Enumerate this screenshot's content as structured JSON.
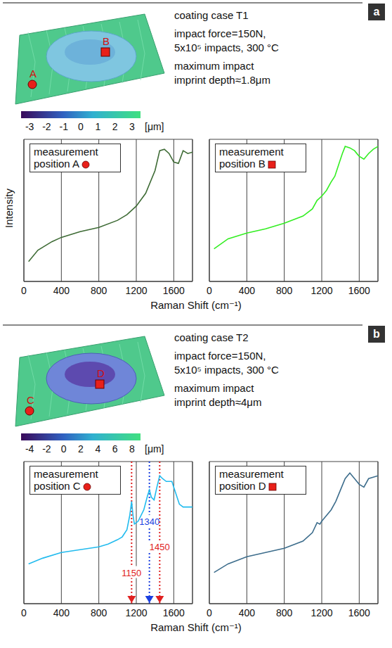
{
  "panels": [
    {
      "letter": "a",
      "texts": [
        "coating case T1",
        "impact force=150N,",
        "5x10⁵ impacts, 300 °C",
        "maximum impact",
        "imprint depth≈1.8μm"
      ],
      "colorbar": {
        "range": [
          -3.5,
          3.5
        ],
        "ticks": [
          -3,
          -2,
          -1,
          0,
          1,
          2,
          3
        ],
        "label": "[μm]"
      },
      "points": [
        {
          "label": "A",
          "shape": "circle"
        },
        {
          "label": "B",
          "shape": "square"
        }
      ],
      "y_label": "Intensity",
      "x_label": "Raman Shift (cm⁻¹)"
    },
    {
      "letter": "b",
      "texts": [
        "coating case T2",
        "impact force=150N,",
        "5x10⁵ impacts, 300 °C",
        "maximum impact",
        "imprint depth≈4μm"
      ],
      "colorbar": {
        "range": [
          -5,
          9
        ],
        "ticks": [
          -4,
          -2,
          0,
          2,
          4,
          6,
          8
        ],
        "label": "[μm]"
      },
      "points": [
        {
          "label": "C",
          "shape": "circle"
        },
        {
          "label": "D",
          "shape": "square"
        }
      ],
      "x_label": "Raman Shift (cm⁻¹)"
    }
  ],
  "chart_data": [
    {
      "type": "line",
      "title": "measurement position A",
      "x": [
        50,
        150,
        300,
        400,
        600,
        800,
        1000,
        1100,
        1200,
        1300,
        1400,
        1450,
        1500,
        1550,
        1600,
        1650,
        1700,
        1750,
        1800
      ],
      "series": [
        {
          "color": "#3e6b35",
          "values": [
            14,
            22,
            28,
            31,
            35,
            38,
            43,
            47,
            53,
            62,
            78,
            92,
            93,
            90,
            84,
            83,
            92,
            90,
            91
          ]
        }
      ],
      "xlim": [
        0,
        1800
      ],
      "ylim": [
        0,
        100
      ],
      "xticks": [
        0,
        400,
        800,
        1200,
        1600
      ],
      "yticks": [
        0,
        20,
        40,
        60,
        80,
        100
      ],
      "grid": true,
      "tick_labels": "x"
    },
    {
      "type": "line",
      "title": "measurement position B",
      "x": [
        50,
        200,
        400,
        600,
        800,
        1000,
        1100,
        1150,
        1200,
        1250,
        1300,
        1340,
        1380,
        1420,
        1450,
        1500,
        1550,
        1600,
        1650,
        1700,
        1750,
        1800
      ],
      "series": [
        {
          "color": "#33ee22",
          "values": [
            23,
            30,
            34,
            37,
            41,
            46,
            51,
            57,
            60,
            64,
            70,
            74,
            82,
            90,
            95,
            94,
            92,
            88,
            86,
            90,
            93,
            95
          ]
        }
      ],
      "xlim": [
        0,
        1800
      ],
      "ylim": [
        0,
        100
      ],
      "xticks": [
        0,
        400,
        800,
        1200,
        1600
      ],
      "yticks": [
        0,
        20,
        40,
        60,
        80,
        100
      ],
      "grid": true,
      "tick_labels": "x"
    },
    {
      "type": "line",
      "title": "measurement position C",
      "x": [
        50,
        200,
        400,
        600,
        800,
        900,
        1000,
        1050,
        1100,
        1130,
        1150,
        1165,
        1180,
        1220,
        1280,
        1320,
        1340,
        1360,
        1390,
        1420,
        1450,
        1480,
        1520,
        1580,
        1620,
        1660,
        1700,
        1800
      ],
      "series": [
        {
          "color": "#22bbee",
          "values": [
            28,
            32,
            36,
            38,
            40,
            42,
            45,
            47,
            52,
            62,
            72,
            62,
            56,
            58,
            66,
            76,
            80,
            75,
            73,
            82,
            90,
            88,
            86,
            86,
            78,
            70,
            68,
            68
          ]
        }
      ],
      "annotations": [
        {
          "x": 1150,
          "label": "1150",
          "color": "#e02020"
        },
        {
          "x": 1340,
          "label": "1340",
          "color": "#1a3fe0"
        },
        {
          "x": 1450,
          "label": "1450",
          "color": "#e02020"
        }
      ],
      "xlim": [
        0,
        1800
      ],
      "ylim": [
        0,
        100
      ],
      "xticks": [
        0,
        400,
        800,
        1200,
        1600
      ],
      "yticks": [
        0,
        20,
        40,
        60,
        80,
        100
      ],
      "grid": true,
      "tick_labels": "x"
    },
    {
      "type": "line",
      "title": "measurement position D",
      "x": [
        50,
        200,
        400,
        600,
        800,
        1000,
        1100,
        1150,
        1180,
        1200,
        1300,
        1350,
        1400,
        1450,
        1500,
        1550,
        1600,
        1650,
        1700,
        1800
      ],
      "series": [
        {
          "color": "#3d6d8c",
          "values": [
            22,
            28,
            33,
            36,
            39,
            44,
            50,
            57,
            56,
            58,
            66,
            72,
            80,
            88,
            92,
            88,
            84,
            82,
            88,
            90
          ]
        }
      ],
      "xlim": [
        0,
        1800
      ],
      "ylim": [
        0,
        100
      ],
      "xticks": [
        0,
        400,
        800,
        1200,
        1600
      ],
      "yticks": [
        0,
        20,
        40,
        60,
        80,
        100
      ],
      "grid": true,
      "tick_labels": "x"
    }
  ]
}
